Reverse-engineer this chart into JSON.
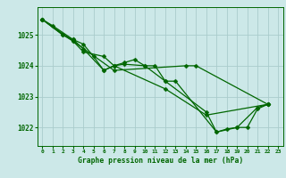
{
  "xlabel": "Graphe pression niveau de la mer (hPa)",
  "x_ticks": [
    0,
    1,
    2,
    3,
    4,
    5,
    6,
    7,
    8,
    9,
    10,
    11,
    12,
    13,
    14,
    15,
    16,
    17,
    18,
    19,
    20,
    21,
    22,
    23
  ],
  "ylim": [
    1021.4,
    1025.9
  ],
  "y_ticks": [
    1022,
    1023,
    1024,
    1025
  ],
  "background_color": "#cce8e8",
  "grid_color": "#aacccc",
  "line_color": "#006600",
  "line1_x": [
    0,
    1,
    3,
    4,
    5,
    6,
    7,
    8,
    9,
    10,
    11,
    12,
    16,
    17,
    18,
    19,
    21,
    22
  ],
  "line1_y": [
    1025.5,
    1025.3,
    1024.85,
    1024.7,
    1024.3,
    1023.85,
    1024.0,
    1024.1,
    1024.2,
    1024.0,
    1024.0,
    1023.5,
    1022.5,
    1021.85,
    1021.95,
    1022.0,
    1022.65,
    1022.75
  ],
  "line2_x": [
    0,
    2,
    3,
    4,
    6,
    7,
    8,
    10,
    12,
    13,
    17,
    19,
    20,
    21,
    22
  ],
  "line2_y": [
    1025.5,
    1025.0,
    1024.85,
    1024.55,
    1023.85,
    1024.0,
    1024.05,
    1024.0,
    1023.5,
    1023.5,
    1021.85,
    1022.0,
    1022.0,
    1022.6,
    1022.75
  ],
  "line3_x": [
    0,
    2,
    3,
    4,
    6,
    7,
    12,
    16,
    22
  ],
  "line3_y": [
    1025.5,
    1025.0,
    1024.8,
    1024.45,
    1024.3,
    1024.0,
    1023.25,
    1022.4,
    1022.75
  ],
  "line4_x": [
    0,
    3,
    7,
    14,
    15,
    22
  ],
  "line4_y": [
    1025.5,
    1024.8,
    1023.85,
    1024.0,
    1024.0,
    1022.75
  ]
}
